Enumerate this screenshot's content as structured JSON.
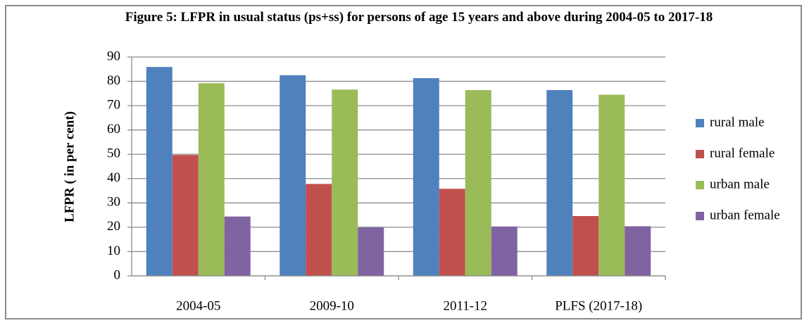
{
  "chart_data": {
    "type": "bar",
    "title": "Figure 5: LFPR in usual status (ps+ss) for persons of age 15 years and above during 2004-05 to 2017-18",
    "y_label": "LFPR ( in per cent)",
    "categories": [
      "2004-05",
      "2009-10",
      "2011-12",
      "PLFS (2017-18)"
    ],
    "series": [
      {
        "name": "rural male",
        "color": "#4f81bd",
        "values": [
          85.9,
          82.5,
          81.3,
          76.4
        ]
      },
      {
        "name": "rural female",
        "color": "#c0504d",
        "values": [
          49.7,
          37.8,
          35.8,
          24.6
        ]
      },
      {
        "name": "urban male",
        "color": "#9bbb59",
        "values": [
          79.2,
          76.6,
          76.4,
          74.5
        ]
      },
      {
        "name": "urban female",
        "color": "#8064a2",
        "values": [
          24.4,
          19.9,
          20.3,
          20.4
        ]
      }
    ],
    "ylim": [
      0,
      90
    ],
    "yticks": [
      0,
      10,
      20,
      30,
      40,
      50,
      60,
      70,
      80,
      90
    ],
    "grid": true,
    "legend": "right"
  }
}
